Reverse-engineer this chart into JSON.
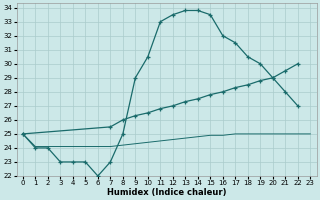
{
  "xlabel": "Humidex (Indice chaleur)",
  "bg_color": "#cce8e8",
  "grid_color": "#aacccc",
  "line_color": "#1a6b6b",
  "xmin": 0,
  "xmax": 23,
  "ymin": 22,
  "ymax": 34,
  "line1_x": [
    0,
    1,
    2,
    3,
    4,
    5,
    6,
    7,
    8,
    9,
    10,
    11,
    12,
    13,
    14,
    15,
    16,
    17,
    18,
    19,
    20,
    21,
    22
  ],
  "line1_y": [
    25,
    24,
    24,
    23,
    23,
    23,
    22,
    23,
    25,
    29,
    30.5,
    33,
    33.5,
    33.8,
    33.8,
    33.5,
    32,
    31.5,
    30.5,
    30,
    29,
    28,
    27
  ],
  "line2_x": [
    0,
    7,
    8,
    9,
    10,
    11,
    12,
    13,
    14,
    15,
    16,
    17,
    18,
    19,
    20,
    21,
    22
  ],
  "line2_y": [
    25,
    25.5,
    26,
    26.3,
    26.5,
    26.8,
    27,
    27.3,
    27.5,
    27.8,
    28,
    28.3,
    28.5,
    28.8,
    29,
    29.5,
    30
  ],
  "line3_x": [
    0,
    1,
    2,
    3,
    4,
    5,
    6,
    7,
    8,
    9,
    10,
    11,
    12,
    13,
    14,
    15,
    16,
    17,
    18,
    19,
    20,
    21,
    22,
    23
  ],
  "line3_y": [
    25,
    24.1,
    24.1,
    24.1,
    24.1,
    24.1,
    24.1,
    24.1,
    24.2,
    24.3,
    24.4,
    24.5,
    24.6,
    24.7,
    24.8,
    24.9,
    24.9,
    25.0,
    25.0,
    25.0,
    25.0,
    25.0,
    25.0,
    25.0
  ]
}
